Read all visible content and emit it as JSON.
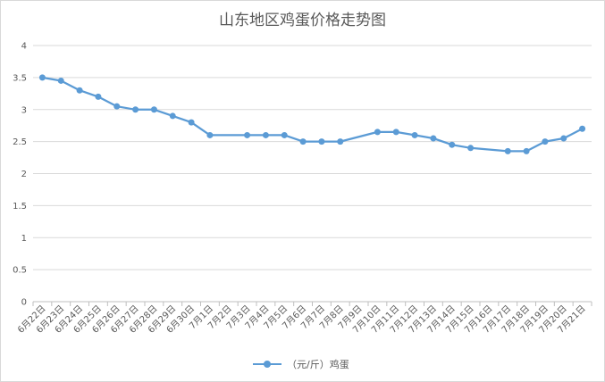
{
  "chart_data": {
    "type": "line",
    "title": "山东地区鸡蛋价格走势图",
    "xlabel": "",
    "ylabel": "",
    "ylim": [
      0,
      4
    ],
    "yticks": [
      "0",
      "0.5",
      "1",
      "1.5",
      "2",
      "2.5",
      "3",
      "3.5",
      "4"
    ],
    "grid": true,
    "legend_position": "bottom",
    "color": "#5b9bd5",
    "categories": [
      "6月22日",
      "6月23日",
      "6月24日",
      "6月25日",
      "6月26日",
      "6月27日",
      "6月28日",
      "6月29日",
      "6月30日",
      "7月1日",
      "7月2日",
      "7月3日",
      "7月4日",
      "7月5日",
      "7月6日",
      "7月7日",
      "7月8日",
      "7月9日",
      "7月10日",
      "7月11日",
      "7月12日",
      "7月13日",
      "7月14日",
      "7月15日",
      "7月16日",
      "7月17日",
      "7月18日",
      "7月19日",
      "7月20日",
      "7月21日"
    ],
    "series": [
      {
        "name": "（元/斤）鸡蛋",
        "values": [
          3.5,
          3.45,
          3.3,
          3.2,
          3.05,
          3.0,
          3.0,
          2.9,
          2.8,
          2.6,
          null,
          2.6,
          2.6,
          2.6,
          2.5,
          2.5,
          2.5,
          null,
          2.65,
          2.65,
          2.6,
          2.55,
          2.45,
          2.4,
          null,
          2.35,
          2.35,
          2.5,
          2.55,
          2.7
        ]
      }
    ]
  }
}
